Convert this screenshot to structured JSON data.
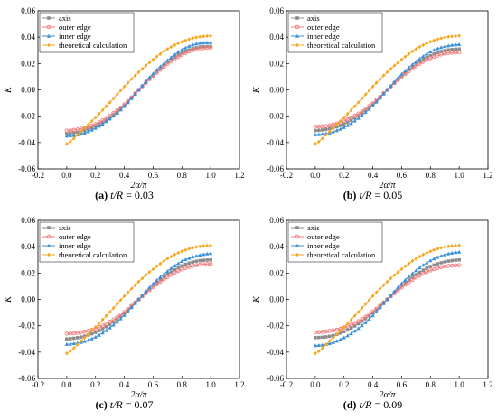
{
  "chart_data": [
    {
      "type": "line",
      "caption": {
        "letter": "(a)",
        "variable": "t/R",
        "value": "= 0.03"
      },
      "xlabel": "2α/π",
      "ylabel": "K",
      "xlim": [
        -0.2,
        1.2
      ],
      "ylim": [
        -0.06,
        0.06
      ],
      "xticks": [
        "-0.2",
        "0.0",
        "0.2",
        "0.4",
        "0.6",
        "0.8",
        "1.0",
        "1.2"
      ],
      "yticks": [
        "-0.06",
        "-0.04",
        "-0.02",
        "0.00",
        "0.02",
        "0.04",
        "0.06"
      ],
      "x": [
        0.0,
        0.1,
        0.2,
        0.3,
        0.4,
        0.5,
        0.6,
        0.7,
        0.8,
        0.9,
        1.0
      ],
      "series": [
        {
          "name": "axis",
          "color": "#8c8c8c",
          "marker": "square",
          "values": [
            -0.033,
            -0.0315,
            -0.0275,
            -0.021,
            -0.012,
            0.0,
            0.011,
            0.021,
            0.028,
            0.032,
            0.033
          ]
        },
        {
          "name": "outer edge",
          "color": "#f07c7c",
          "marker": "circle",
          "values": [
            -0.031,
            -0.0295,
            -0.026,
            -0.0195,
            -0.011,
            0.0,
            0.0105,
            0.0195,
            0.0265,
            0.031,
            0.032
          ]
        },
        {
          "name": "inner edge",
          "color": "#3a8fd9",
          "marker": "triangle",
          "values": [
            -0.035,
            -0.0335,
            -0.029,
            -0.022,
            -0.0125,
            0.0,
            0.0125,
            0.0225,
            0.0305,
            0.035,
            0.036
          ]
        },
        {
          "name": "theoretical calculation",
          "color": "#f5a623",
          "marker": "diamond",
          "values": [
            -0.041,
            -0.0315,
            -0.021,
            -0.0095,
            0.0025,
            0.0135,
            0.023,
            0.031,
            0.0365,
            0.0398,
            0.041
          ]
        }
      ],
      "legend": "top-left"
    },
    {
      "type": "line",
      "caption": {
        "letter": "(b)",
        "variable": "t/R",
        "value": "= 0.05"
      },
      "xlabel": "2α/π",
      "ylabel": "K",
      "xlim": [
        -0.2,
        1.2
      ],
      "ylim": [
        -0.06,
        0.06
      ],
      "xticks": [
        "-0.2",
        "0.0",
        "0.2",
        "0.4",
        "0.6",
        "0.8",
        "1.0",
        "1.2"
      ],
      "yticks": [
        "-0.06",
        "-0.04",
        "-0.02",
        "0.00",
        "0.02",
        "0.04",
        "0.06"
      ],
      "x": [
        0.0,
        0.1,
        0.2,
        0.3,
        0.4,
        0.5,
        0.6,
        0.7,
        0.8,
        0.9,
        1.0
      ],
      "series": [
        {
          "name": "axis",
          "color": "#8c8c8c",
          "marker": "square",
          "values": [
            -0.031,
            -0.0295,
            -0.026,
            -0.0195,
            -0.011,
            0.0,
            0.0105,
            0.0195,
            0.026,
            0.0298,
            0.031
          ]
        },
        {
          "name": "outer edge",
          "color": "#f07c7c",
          "marker": "circle",
          "values": [
            -0.028,
            -0.027,
            -0.0235,
            -0.018,
            -0.0102,
            0.0,
            0.0098,
            0.018,
            0.024,
            0.0275,
            0.0285
          ]
        },
        {
          "name": "inner edge",
          "color": "#3a8fd9",
          "marker": "triangle",
          "values": [
            -0.034,
            -0.0325,
            -0.0285,
            -0.0215,
            -0.012,
            0.0,
            0.012,
            0.0215,
            0.029,
            0.033,
            0.0345
          ]
        },
        {
          "name": "theoretical calculation",
          "color": "#f5a623",
          "marker": "diamond",
          "values": [
            -0.041,
            -0.0315,
            -0.021,
            -0.0095,
            0.0025,
            0.0135,
            0.023,
            0.031,
            0.0365,
            0.0398,
            0.041
          ]
        }
      ],
      "legend": "top-left"
    },
    {
      "type": "line",
      "caption": {
        "letter": "(c)",
        "variable": "t/R",
        "value": "= 0.07"
      },
      "xlabel": "2α/π",
      "ylabel": "K",
      "xlim": [
        -0.2,
        1.2
      ],
      "ylim": [
        -0.06,
        0.06
      ],
      "xticks": [
        "-0.2",
        "0.0",
        "0.2",
        "0.4",
        "0.6",
        "0.8",
        "1.0",
        "1.2"
      ],
      "yticks": [
        "-0.06",
        "-0.04",
        "-0.02",
        "0.00",
        "0.02",
        "0.04",
        "0.06"
      ],
      "x": [
        0.0,
        0.1,
        0.2,
        0.3,
        0.4,
        0.5,
        0.6,
        0.7,
        0.8,
        0.9,
        1.0
      ],
      "series": [
        {
          "name": "axis",
          "color": "#8c8c8c",
          "marker": "square",
          "values": [
            -0.03,
            -0.0285,
            -0.025,
            -0.019,
            -0.0105,
            0.0,
            0.0102,
            0.019,
            0.0255,
            0.029,
            0.03
          ]
        },
        {
          "name": "outer edge",
          "color": "#f07c7c",
          "marker": "circle",
          "values": [
            -0.026,
            -0.025,
            -0.0222,
            -0.017,
            -0.0095,
            0.0,
            0.0092,
            0.017,
            0.0228,
            0.026,
            0.027
          ]
        },
        {
          "name": "inner edge",
          "color": "#3a8fd9",
          "marker": "triangle",
          "values": [
            -0.034,
            -0.0325,
            -0.0285,
            -0.0215,
            -0.012,
            0.0,
            0.012,
            0.0215,
            0.029,
            0.033,
            0.035
          ]
        },
        {
          "name": "theoretical calculation",
          "color": "#f5a623",
          "marker": "diamond",
          "values": [
            -0.041,
            -0.0315,
            -0.021,
            -0.0095,
            0.0025,
            0.0135,
            0.023,
            0.031,
            0.0365,
            0.0398,
            0.041
          ]
        }
      ],
      "legend": "top-left"
    },
    {
      "type": "line",
      "caption": {
        "letter": "(d)",
        "variable": "t/R",
        "value": "= 0.09"
      },
      "xlabel": "2α/π",
      "ylabel": "K",
      "xlim": [
        -0.2,
        1.2
      ],
      "ylim": [
        -0.06,
        0.06
      ],
      "xticks": [
        "-0.2",
        "0.0",
        "0.2",
        "0.4",
        "0.6",
        "0.8",
        "1.0",
        "1.2"
      ],
      "yticks": [
        "-0.06",
        "-0.04",
        "-0.02",
        "0.00",
        "0.02",
        "0.04",
        "0.06"
      ],
      "x": [
        0.0,
        0.1,
        0.2,
        0.3,
        0.4,
        0.5,
        0.6,
        0.7,
        0.8,
        0.9,
        1.0
      ],
      "series": [
        {
          "name": "axis",
          "color": "#8c8c8c",
          "marker": "square",
          "values": [
            -0.029,
            -0.028,
            -0.0245,
            -0.0185,
            -0.0102,
            0.0,
            0.0102,
            0.0188,
            0.025,
            0.0285,
            0.03
          ]
        },
        {
          "name": "outer edge",
          "color": "#f07c7c",
          "marker": "circle",
          "values": [
            -0.025,
            -0.024,
            -0.0215,
            -0.0165,
            -0.0092,
            0.0,
            0.009,
            0.0165,
            0.022,
            0.025,
            0.026
          ]
        },
        {
          "name": "inner edge",
          "color": "#3a8fd9",
          "marker": "triangle",
          "values": [
            -0.035,
            -0.0335,
            -0.029,
            -0.022,
            -0.0122,
            0.0,
            0.0122,
            0.022,
            0.0295,
            0.034,
            0.036
          ]
        },
        {
          "name": "theoretical calculation",
          "color": "#f5a623",
          "marker": "diamond",
          "values": [
            -0.041,
            -0.0315,
            -0.021,
            -0.0095,
            0.0025,
            0.0135,
            0.023,
            0.031,
            0.0365,
            0.0398,
            0.041
          ]
        }
      ],
      "legend": "top-left"
    }
  ]
}
